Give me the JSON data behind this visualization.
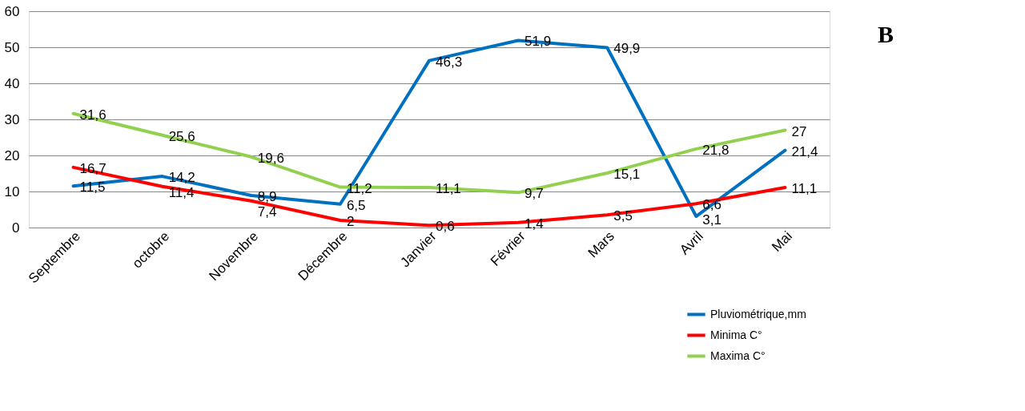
{
  "chart_data": {
    "type": "line",
    "categories": [
      "Septembre",
      "octobre",
      "Novembre",
      "Décembre",
      "Janvier",
      "Février",
      "Mars",
      "Avril",
      "Mai"
    ],
    "series": [
      {
        "name": "Pluviométrique,mm",
        "color": "#0070c0",
        "values": [
          11.5,
          14.2,
          8.9,
          6.5,
          46.3,
          51.9,
          49.9,
          3.1,
          21.4
        ],
        "value_labels": [
          "11,5",
          "14,2",
          "8,9",
          "6,5",
          "46,3",
          "51,9",
          "49,9",
          "3,1",
          "21,4"
        ]
      },
      {
        "name": "Minima C°",
        "color": "#ff0000",
        "values": [
          16.7,
          11.4,
          7.4,
          2,
          0.6,
          1.4,
          3.5,
          6.6,
          11.1
        ],
        "value_labels": [
          "16,7",
          "11,4",
          "7,4",
          "2",
          "0,6",
          "1,4",
          "3,5",
          "6,6",
          "11,1"
        ]
      },
      {
        "name": "Maxima C°",
        "color": "#92d050",
        "values": [
          31.6,
          25.6,
          19.6,
          11.2,
          11.1,
          9.7,
          15.1,
          21.8,
          27
        ],
        "value_labels": [
          "31,6",
          "25,6",
          "19,6",
          "11,2",
          "11,1",
          "9,7",
          "15,1",
          "21,8",
          "27"
        ]
      }
    ],
    "ylim": [
      0,
      60
    ],
    "yticks": [
      0,
      10,
      20,
      30,
      40,
      50,
      60
    ],
    "grid": "y",
    "legend": "bottom right",
    "marker": "none",
    "line_style": "solid",
    "annotations": [
      "B"
    ]
  }
}
